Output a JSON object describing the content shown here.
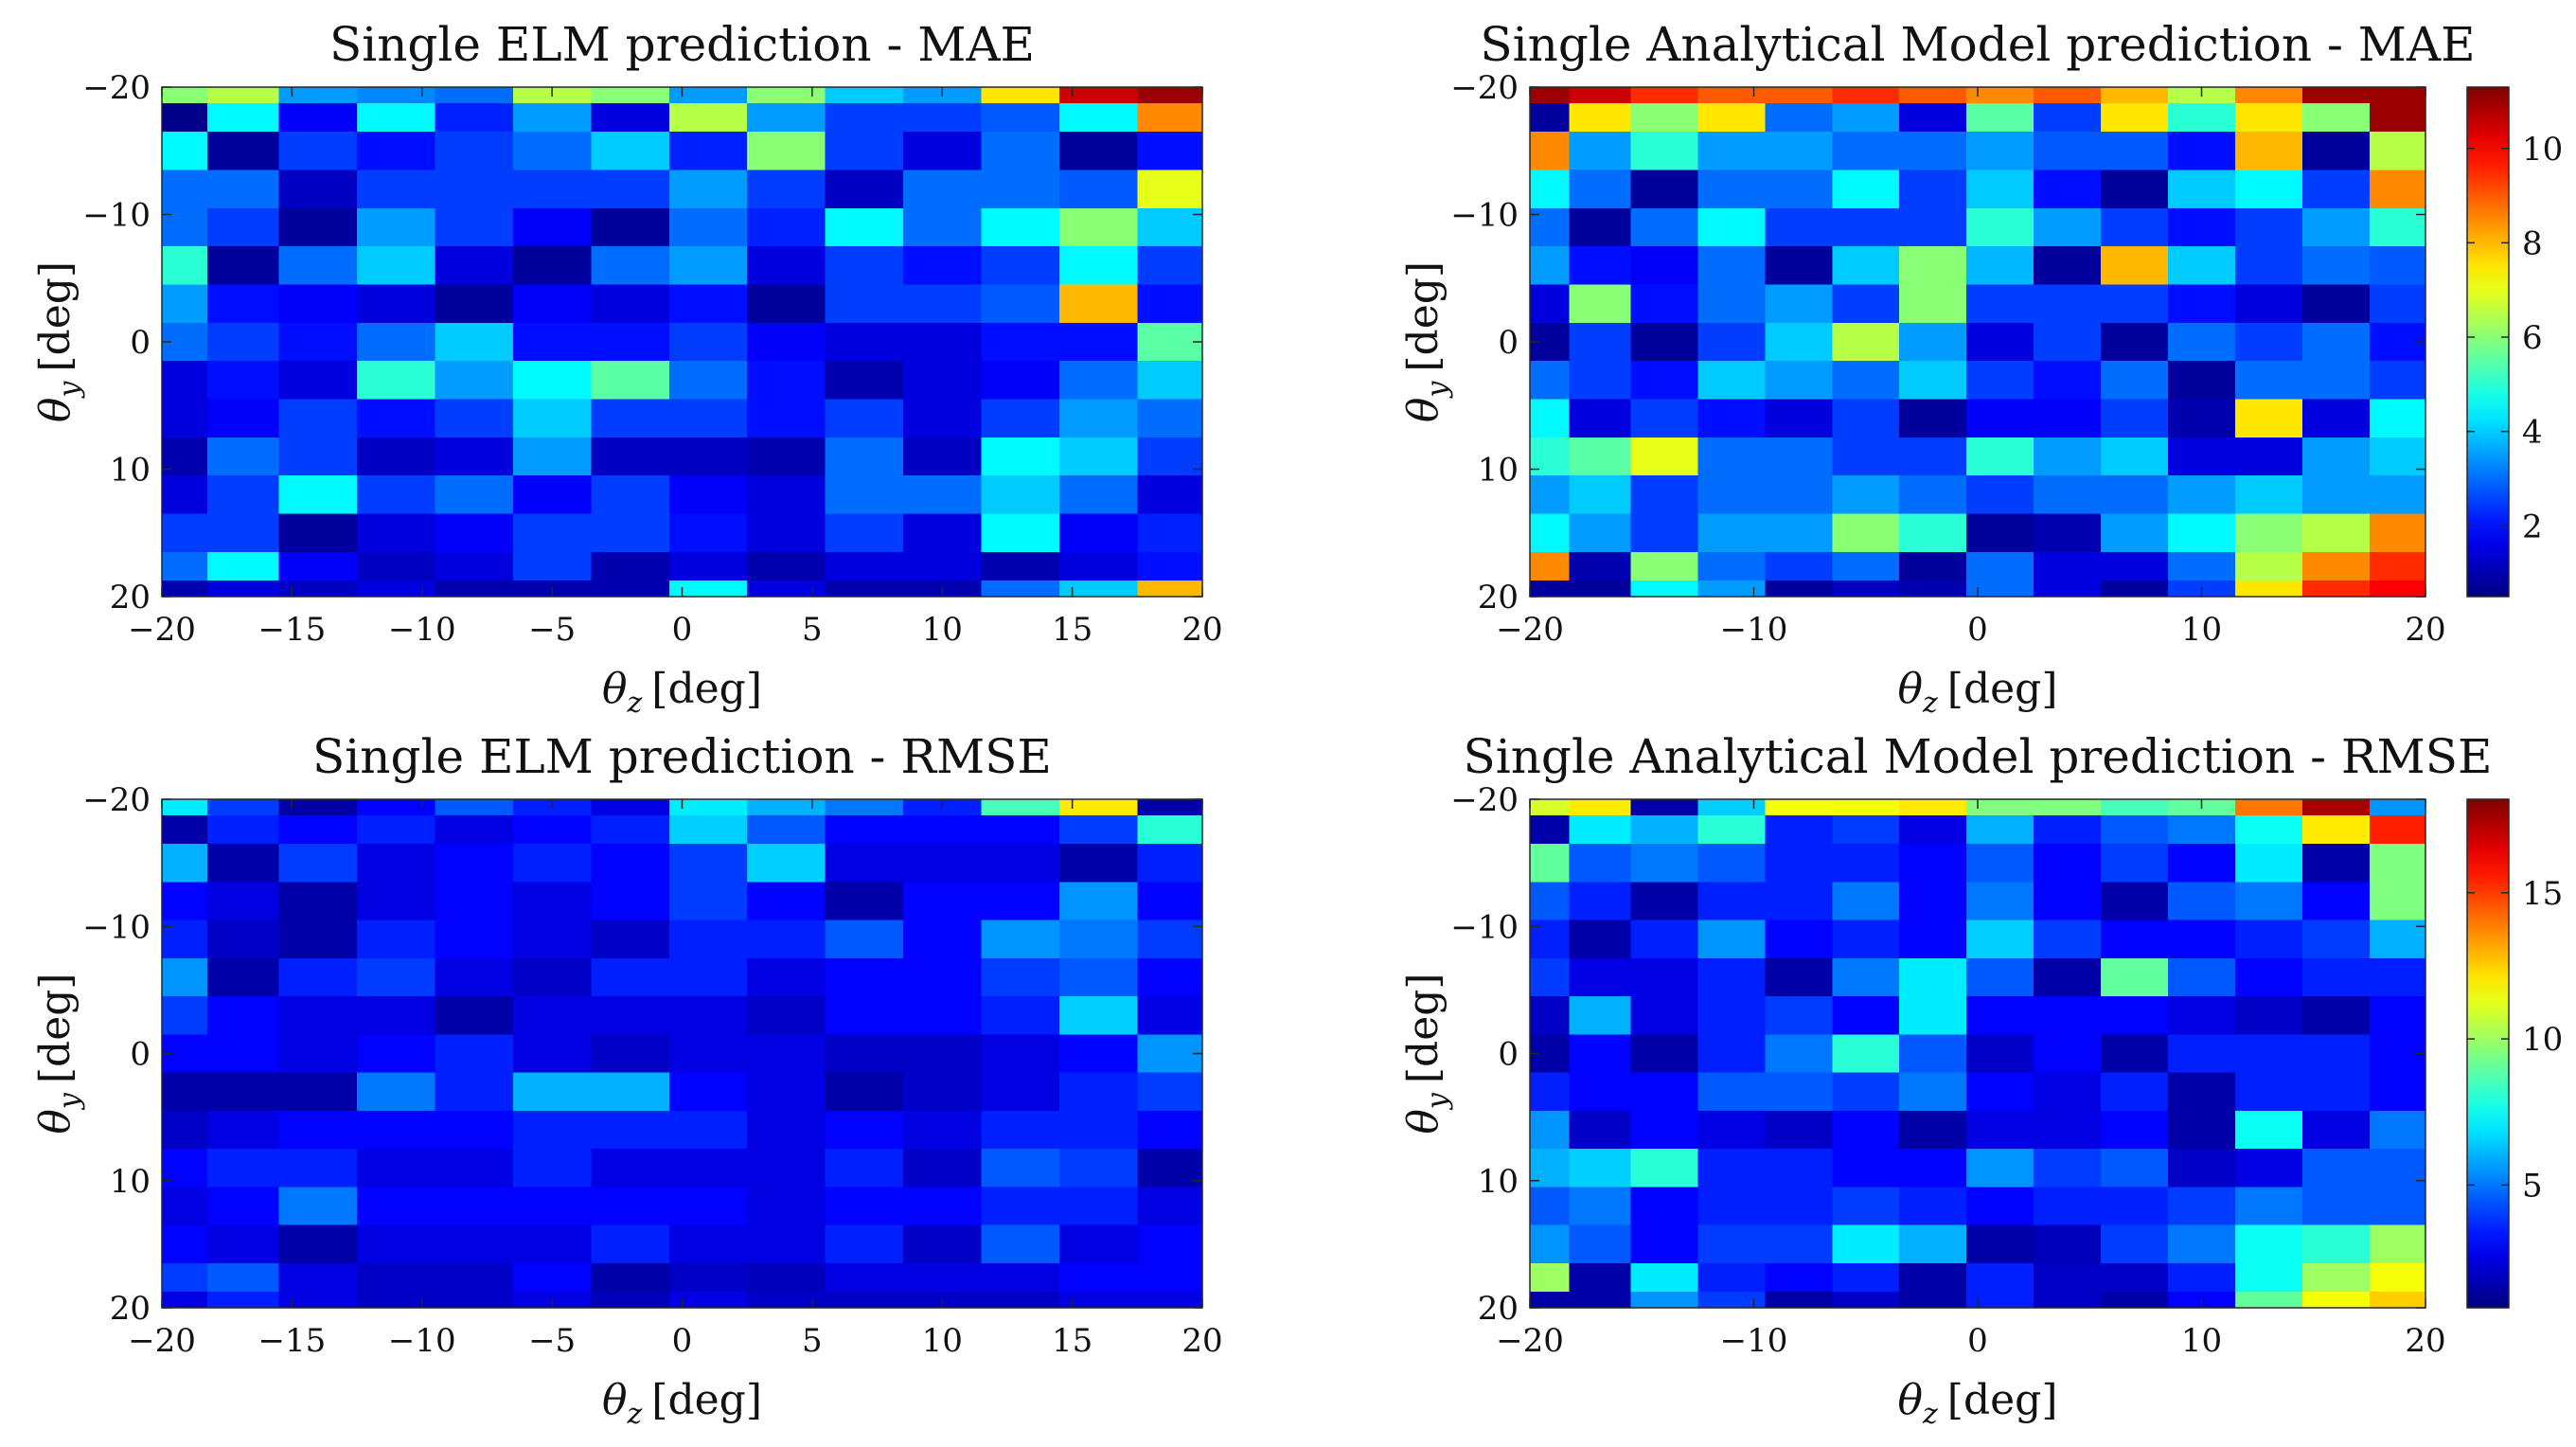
{
  "chart_data": [
    {
      "type": "heatmap",
      "title": "Single ELM prediction - MAE",
      "xlabel_symbol": "θ",
      "xlabel_sub": "z",
      "xlabel_unit": "[deg]",
      "ylabel_symbol": "θ",
      "ylabel_sub": "y",
      "ylabel_unit": "[deg]",
      "xlim": [
        -20,
        20
      ],
      "ylim": [
        -20,
        20
      ],
      "xticks": [
        -20,
        -15,
        -10,
        -5,
        0,
        5,
        10,
        15,
        20
      ],
      "yticks": [
        -20,
        -10,
        0,
        10,
        20
      ],
      "y_direction": "reversed",
      "colorbar": false,
      "clim": [
        0.5,
        11.3
      ],
      "x_centers": [
        -19.5,
        -17,
        -14,
        -11,
        -8,
        -5,
        -2,
        1,
        4,
        7,
        10,
        13,
        16,
        19
      ],
      "y_centers": [
        -19.5,
        -18,
        -15,
        -12,
        -9,
        -6,
        -3,
        0,
        3,
        6,
        9,
        12,
        15,
        18,
        19.5
      ],
      "z": [
        [
          6.0,
          6.5,
          3.5,
          3.3,
          3.0,
          6.5,
          6.0,
          3.5,
          6.0,
          4.0,
          3.5,
          7.5,
          10.5,
          11.0
        ],
        [
          0.6,
          4.5,
          1.8,
          4.5,
          2.2,
          3.5,
          1.5,
          6.5,
          3.5,
          2.5,
          2.5,
          2.8,
          4.5,
          8.5
        ],
        [
          4.5,
          0.8,
          2.5,
          2.0,
          2.5,
          3.0,
          4.0,
          2.2,
          6.0,
          2.5,
          1.5,
          3.0,
          0.8,
          2.0
        ],
        [
          3.0,
          3.0,
          1.2,
          2.5,
          2.5,
          2.5,
          2.5,
          3.5,
          2.5,
          1.2,
          3.0,
          3.0,
          2.8,
          7.0
        ],
        [
          3.0,
          2.5,
          0.8,
          3.5,
          2.5,
          1.8,
          0.8,
          3.0,
          2.2,
          4.5,
          3.0,
          4.5,
          6.0,
          4.0
        ],
        [
          5.0,
          0.8,
          3.0,
          4.0,
          1.5,
          0.8,
          3.0,
          3.5,
          1.5,
          2.5,
          2.0,
          2.5,
          4.5,
          2.5
        ],
        [
          3.5,
          2.0,
          1.8,
          1.5,
          0.8,
          1.8,
          1.5,
          2.0,
          0.8,
          2.5,
          2.5,
          2.8,
          8.0,
          2.0
        ],
        [
          3.0,
          2.5,
          2.0,
          3.0,
          4.0,
          2.0,
          2.0,
          2.5,
          1.8,
          1.5,
          1.5,
          2.0,
          2.0,
          5.5
        ],
        [
          1.5,
          2.0,
          1.5,
          5.0,
          3.5,
          4.5,
          5.5,
          3.0,
          2.0,
          1.0,
          1.5,
          1.8,
          3.0,
          4.0
        ],
        [
          1.5,
          1.8,
          2.5,
          2.0,
          2.5,
          4.0,
          2.5,
          2.5,
          2.0,
          2.5,
          1.5,
          2.5,
          3.5,
          3.0
        ],
        [
          1.0,
          3.0,
          2.5,
          1.2,
          1.5,
          3.5,
          1.2,
          1.2,
          1.0,
          3.0,
          1.2,
          4.5,
          4.0,
          2.5
        ],
        [
          1.5,
          2.5,
          4.5,
          2.5,
          3.0,
          1.8,
          2.5,
          1.8,
          1.5,
          3.0,
          3.0,
          4.0,
          3.0,
          1.5
        ],
        [
          2.5,
          2.5,
          0.8,
          1.5,
          1.8,
          2.5,
          2.5,
          2.0,
          1.5,
          2.5,
          1.5,
          4.5,
          1.8,
          2.2
        ],
        [
          3.0,
          4.5,
          1.8,
          1.2,
          1.5,
          2.5,
          1.0,
          1.5,
          1.0,
          1.5,
          1.5,
          1.0,
          1.5,
          2.0
        ],
        [
          1.0,
          1.5,
          1.2,
          1.5,
          1.0,
          1.0,
          1.0,
          4.5,
          1.5,
          1.0,
          1.0,
          3.0,
          4.0,
          8.0
        ]
      ]
    },
    {
      "type": "heatmap",
      "title": "Single Analytical Model prediction - MAE",
      "xlabel_symbol": "θ",
      "xlabel_sub": "z",
      "xlabel_unit": "[deg]",
      "ylabel_symbol": "θ",
      "ylabel_sub": "y",
      "ylabel_unit": "[deg]",
      "xlim": [
        -20,
        20
      ],
      "ylim": [
        -20,
        20
      ],
      "xticks": [
        -20,
        -10,
        0,
        10,
        20
      ],
      "yticks": [
        -20,
        -10,
        0,
        10,
        20
      ],
      "y_direction": "reversed",
      "colorbar": true,
      "clim": [
        0.5,
        11.3
      ],
      "colorbar_ticks": [
        2,
        4,
        6,
        8,
        10
      ],
      "x_centers": [
        -19.5,
        -17,
        -14,
        -11,
        -8,
        -5,
        -2,
        1,
        4,
        7,
        10,
        13,
        16,
        19
      ],
      "y_centers": [
        -19.5,
        -18,
        -15,
        -12,
        -9,
        -6,
        -3,
        0,
        3,
        6,
        9,
        12,
        15,
        18,
        19.5
      ],
      "z": [
        [
          11.0,
          10.5,
          9.5,
          9.0,
          9.0,
          9.5,
          9.0,
          8.5,
          9.0,
          8.0,
          6.5,
          8.5,
          11.0,
          11.0
        ],
        [
          0.8,
          7.5,
          6.0,
          7.5,
          3.0,
          3.5,
          1.5,
          5.5,
          2.5,
          7.5,
          5.0,
          7.5,
          6.0,
          11.0
        ],
        [
          8.5,
          3.5,
          5.0,
          3.5,
          3.5,
          3.0,
          3.0,
          3.5,
          2.8,
          2.8,
          2.0,
          8.0,
          0.8,
          6.5
        ],
        [
          4.5,
          3.0,
          0.8,
          3.0,
          3.0,
          4.5,
          2.5,
          4.0,
          2.0,
          0.8,
          4.0,
          4.5,
          2.5,
          8.5
        ],
        [
          3.0,
          0.8,
          3.0,
          4.5,
          2.5,
          2.5,
          2.5,
          5.0,
          3.5,
          2.5,
          2.0,
          2.5,
          3.5,
          5.0
        ],
        [
          3.5,
          2.0,
          1.8,
          3.0,
          0.8,
          4.0,
          6.0,
          3.8,
          0.8,
          8.0,
          4.0,
          2.5,
          3.0,
          2.8
        ],
        [
          1.5,
          6.0,
          2.0,
          3.0,
          3.5,
          2.5,
          6.0,
          2.5,
          2.5,
          2.5,
          2.0,
          1.5,
          0.8,
          2.5
        ],
        [
          0.8,
          2.5,
          0.8,
          2.5,
          4.0,
          6.5,
          3.5,
          1.5,
          2.5,
          0.8,
          3.0,
          2.5,
          3.0,
          2.0
        ],
        [
          3.0,
          2.5,
          2.0,
          4.0,
          3.5,
          3.0,
          4.0,
          2.5,
          2.0,
          3.0,
          0.8,
          3.0,
          3.0,
          2.5
        ],
        [
          4.5,
          1.5,
          2.5,
          2.0,
          1.5,
          2.5,
          0.8,
          1.8,
          1.8,
          2.5,
          1.0,
          7.5,
          1.5,
          4.5
        ],
        [
          5.0,
          5.5,
          7.0,
          3.0,
          3.0,
          2.5,
          2.5,
          5.0,
          3.5,
          4.0,
          1.5,
          1.5,
          3.5,
          4.0
        ],
        [
          3.5,
          4.0,
          2.5,
          3.0,
          3.0,
          3.5,
          3.0,
          2.5,
          3.0,
          3.0,
          3.5,
          4.0,
          3.5,
          3.5
        ],
        [
          4.5,
          3.5,
          2.5,
          3.5,
          3.5,
          6.0,
          5.0,
          0.8,
          1.0,
          3.5,
          4.5,
          6.0,
          6.5,
          8.5
        ],
        [
          8.5,
          1.0,
          6.0,
          3.0,
          2.5,
          3.0,
          0.8,
          3.0,
          1.5,
          1.5,
          3.0,
          6.5,
          8.5,
          9.5
        ],
        [
          0.8,
          0.8,
          4.5,
          3.5,
          0.8,
          1.2,
          1.0,
          3.0,
          1.5,
          0.8,
          2.5,
          7.5,
          9.5,
          10.0
        ]
      ]
    },
    {
      "type": "heatmap",
      "title": "Single ELM prediction - RMSE",
      "xlabel_symbol": "θ",
      "xlabel_sub": "z",
      "xlabel_unit": "[deg]",
      "ylabel_symbol": "θ",
      "ylabel_sub": "y",
      "ylabel_unit": "[deg]",
      "xlim": [
        -20,
        20
      ],
      "ylim": [
        -20,
        20
      ],
      "xticks": [
        -20,
        -15,
        -10,
        -5,
        0,
        5,
        10,
        15,
        20
      ],
      "yticks": [
        -20,
        -10,
        0,
        10,
        20
      ],
      "y_direction": "reversed",
      "colorbar": false,
      "clim": [
        0.8,
        18.2
      ],
      "x_centers": [
        -19.5,
        -17,
        -14,
        -11,
        -8,
        -5,
        -2,
        1,
        4,
        7,
        10,
        13,
        16,
        19
      ],
      "y_centers": [
        -19.5,
        -18,
        -15,
        -12,
        -9,
        -6,
        -3,
        0,
        3,
        6,
        9,
        12,
        15,
        18,
        19.5
      ],
      "z": [
        [
          7.0,
          4.0,
          1.5,
          3.0,
          4.5,
          3.5,
          2.5,
          7.0,
          6.0,
          5.0,
          3.5,
          8.5,
          12.0,
          1.5
        ],
        [
          1.5,
          3.5,
          3.0,
          3.5,
          2.5,
          3.0,
          3.5,
          6.5,
          4.5,
          3.0,
          3.0,
          3.0,
          4.0,
          8.0
        ],
        [
          6.0,
          1.5,
          4.0,
          2.5,
          3.0,
          3.5,
          3.0,
          4.0,
          6.5,
          2.5,
          2.5,
          2.5,
          1.5,
          3.5
        ],
        [
          3.0,
          2.5,
          1.5,
          2.5,
          3.0,
          2.5,
          3.0,
          4.0,
          3.0,
          1.5,
          3.0,
          3.0,
          5.5,
          3.0
        ],
        [
          3.5,
          2.0,
          1.5,
          3.5,
          3.0,
          2.5,
          2.0,
          3.5,
          3.5,
          4.5,
          3.0,
          5.5,
          5.0,
          4.0
        ],
        [
          5.5,
          1.5,
          3.5,
          4.0,
          2.5,
          2.0,
          3.5,
          3.5,
          2.5,
          3.0,
          3.0,
          4.0,
          4.5,
          3.0
        ],
        [
          4.0,
          3.0,
          2.5,
          2.5,
          1.5,
          2.5,
          2.5,
          2.5,
          2.0,
          3.0,
          3.0,
          3.5,
          6.5,
          2.5
        ],
        [
          3.0,
          3.0,
          2.5,
          3.0,
          3.5,
          2.5,
          2.0,
          2.5,
          2.5,
          2.0,
          2.0,
          2.5,
          3.0,
          5.5
        ],
        [
          1.5,
          1.5,
          1.5,
          5.0,
          3.5,
          6.0,
          6.0,
          3.0,
          2.5,
          1.5,
          2.0,
          2.5,
          3.5,
          4.0
        ],
        [
          2.0,
          2.5,
          3.0,
          3.0,
          3.0,
          3.5,
          3.5,
          3.5,
          2.5,
          3.0,
          2.5,
          3.5,
          3.5,
          3.0
        ],
        [
          3.0,
          3.5,
          3.5,
          2.5,
          2.5,
          3.5,
          2.5,
          2.5,
          2.5,
          3.5,
          2.0,
          4.5,
          4.0,
          1.5
        ],
        [
          2.5,
          3.0,
          5.0,
          3.0,
          3.0,
          3.0,
          3.0,
          3.0,
          2.5,
          3.0,
          3.0,
          3.5,
          3.5,
          2.5
        ],
        [
          3.0,
          2.5,
          1.5,
          2.5,
          2.5,
          2.5,
          3.5,
          2.5,
          2.5,
          3.5,
          2.0,
          4.5,
          2.5,
          3.0
        ],
        [
          4.0,
          4.5,
          2.5,
          2.0,
          2.0,
          3.0,
          1.5,
          2.0,
          1.8,
          2.5,
          2.5,
          2.5,
          3.0,
          3.0
        ],
        [
          2.5,
          3.5,
          2.5,
          2.0,
          2.0,
          2.5,
          1.8,
          2.5,
          2.0,
          2.0,
          2.0,
          2.0,
          2.5,
          2.5
        ]
      ]
    },
    {
      "type": "heatmap",
      "title": "Single Analytical Model prediction - RMSE",
      "xlabel_symbol": "θ",
      "xlabel_sub": "z",
      "xlabel_unit": "[deg]",
      "ylabel_symbol": "θ",
      "ylabel_sub": "y",
      "ylabel_unit": "[deg]",
      "xlim": [
        -20,
        20
      ],
      "ylim": [
        -20,
        20
      ],
      "xticks": [
        -20,
        -10,
        0,
        10,
        20
      ],
      "yticks": [
        -20,
        -10,
        0,
        10,
        20
      ],
      "y_direction": "reversed",
      "colorbar": true,
      "clim": [
        0.8,
        18.2
      ],
      "colorbar_ticks": [
        5,
        10,
        15
      ],
      "x_centers": [
        -19.5,
        -17,
        -14,
        -11,
        -8,
        -5,
        -2,
        1,
        4,
        7,
        10,
        13,
        16,
        19
      ],
      "y_centers": [
        -19.5,
        -18,
        -15,
        -12,
        -9,
        -6,
        -3,
        0,
        3,
        6,
        9,
        12,
        15,
        18,
        19.5
      ],
      "z": [
        [
          11.0,
          12.0,
          1.5,
          6.5,
          11.5,
          11.5,
          12.0,
          9.5,
          9.5,
          8.5,
          9.0,
          14.0,
          17.5,
          5.5
        ],
        [
          1.5,
          7.0,
          6.0,
          8.0,
          3.5,
          4.0,
          2.5,
          6.0,
          3.5,
          4.5,
          5.0,
          7.5,
          12.0,
          15.5
        ],
        [
          9.0,
          4.5,
          5.0,
          4.5,
          3.5,
          3.5,
          3.0,
          4.5,
          3.0,
          4.0,
          3.0,
          7.0,
          1.5,
          9.5
        ],
        [
          4.5,
          3.5,
          1.5,
          3.5,
          3.5,
          5.0,
          3.0,
          5.0,
          3.0,
          1.5,
          4.5,
          5.0,
          3.0,
          9.5
        ],
        [
          3.5,
          1.5,
          3.5,
          5.5,
          3.0,
          3.5,
          3.0,
          6.5,
          4.0,
          3.0,
          3.0,
          3.5,
          4.0,
          6.0
        ],
        [
          4.0,
          2.5,
          2.5,
          3.5,
          1.5,
          5.0,
          7.0,
          4.5,
          1.5,
          9.0,
          4.5,
          3.0,
          3.5,
          3.5
        ],
        [
          2.0,
          6.0,
          2.5,
          3.5,
          4.0,
          3.0,
          7.0,
          3.0,
          3.0,
          3.0,
          2.5,
          2.0,
          1.5,
          3.0
        ],
        [
          1.5,
          3.0,
          1.5,
          3.5,
          5.0,
          8.0,
          4.5,
          2.0,
          3.0,
          1.5,
          3.5,
          3.5,
          3.5,
          3.0
        ],
        [
          3.5,
          3.0,
          3.0,
          4.5,
          4.5,
          4.0,
          5.0,
          3.0,
          2.5,
          3.5,
          1.5,
          3.5,
          3.5,
          3.0
        ],
        [
          5.5,
          2.0,
          3.0,
          2.5,
          2.0,
          3.0,
          1.5,
          2.5,
          2.5,
          3.0,
          1.5,
          7.5,
          2.5,
          5.0
        ],
        [
          6.0,
          6.5,
          8.0,
          3.5,
          3.5,
          3.0,
          3.0,
          5.5,
          4.0,
          4.5,
          2.0,
          2.5,
          4.5,
          4.5
        ],
        [
          4.5,
          5.0,
          3.0,
          3.5,
          3.5,
          4.0,
          3.5,
          3.0,
          3.5,
          3.5,
          4.0,
          5.0,
          4.5,
          4.5
        ],
        [
          5.5,
          4.5,
          3.0,
          4.0,
          4.0,
          7.0,
          6.0,
          1.5,
          1.8,
          4.0,
          5.0,
          7.5,
          8.0,
          10.0
        ],
        [
          10.0,
          1.5,
          7.0,
          3.5,
          3.0,
          3.5,
          1.5,
          3.5,
          2.0,
          2.0,
          3.5,
          7.5,
          10.0,
          11.5
        ],
        [
          1.5,
          1.5,
          5.5,
          4.0,
          1.5,
          2.0,
          1.5,
          3.5,
          2.0,
          1.5,
          3.0,
          9.0,
          11.5,
          12.5
        ]
      ]
    }
  ]
}
